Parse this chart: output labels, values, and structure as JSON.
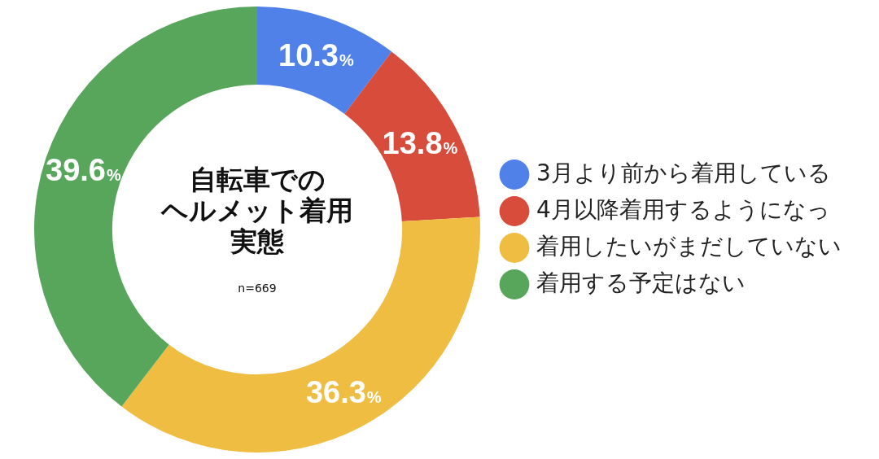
{
  "chart_data": {
    "type": "donut",
    "title": "自転車でのヘルメット着用実態",
    "categories": [
      "3月より前から着用している",
      "4月以降着用するようになっ",
      "着用したいがまだしていない",
      "着用する予定はない"
    ],
    "values": [
      10.3,
      13.8,
      36.3,
      39.6
    ],
    "colors": [
      "#4f81e9",
      "#d74c3a",
      "#efbd42",
      "#58a55c"
    ],
    "value_labels": [
      "10.3%",
      "13.8%",
      "36.3%",
      "39.6%"
    ],
    "legend": "right",
    "annotations": [
      "n=669"
    ]
  }
}
